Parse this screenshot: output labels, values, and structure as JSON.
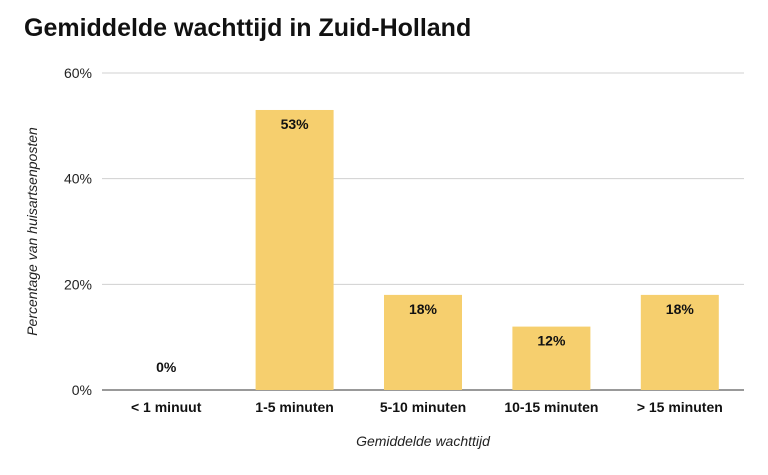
{
  "chart_data": {
    "type": "bar",
    "title": "Gemiddelde wachttijd in Zuid-Holland",
    "xlabel": "Gemiddelde wachttijd",
    "ylabel": "Percentage van huisartsenposten",
    "categories": [
      "< 1 minuut",
      "1-5 minuten",
      "5-10 minuten",
      "10-15 minuten",
      "> 15 minuten"
    ],
    "values": [
      0,
      53,
      18,
      12,
      18
    ],
    "data_labels": [
      "0%",
      "53%",
      "18%",
      "12%",
      "18%"
    ],
    "ylim": [
      0,
      60
    ],
    "yticks": [
      0,
      20,
      40,
      60
    ],
    "ytick_labels": [
      "0%",
      "20%",
      "40%",
      "60%"
    ],
    "grid": true,
    "legend": "none",
    "bar_color": "#F6CF6E",
    "gridline_color": "#D0D0D0"
  }
}
